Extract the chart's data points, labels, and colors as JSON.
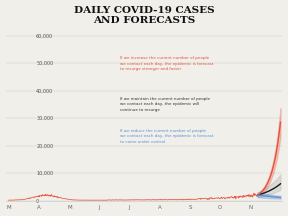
{
  "title_line1": "DAILY COVID-19 CASES",
  "title_line2": "AND FORECASTS",
  "title_fontsize": 7.5,
  "ytick_vals": [
    0,
    10000,
    20000,
    30000,
    40000,
    50000,
    60000
  ],
  "ylabel_ticks": [
    "0",
    "10,000",
    "20,000",
    "30,000",
    "40,000",
    "50,000",
    "60,000"
  ],
  "ylim": [
    0,
    63000
  ],
  "xtick_labels": [
    "M",
    "A",
    "M",
    "J",
    "J",
    "A",
    "S",
    "O",
    "N"
  ],
  "bg_color": "#f0efea",
  "actual_color": "#e8503a",
  "forecast_maintain_color": "#1a1a1a",
  "forecast_maintain_band_color": "#aaaaaa",
  "forecast_increase_color": "#e8503a",
  "forecast_increase_band_color": "#e8503a",
  "forecast_reduce_color": "#5b8fd4",
  "forecast_reduce_band_color": "#5b8fd4",
  "annotation_increase_color": "#e8503a",
  "annotation_maintain_color": "#333333",
  "annotation_reduce_color": "#5b8fd4",
  "annotation_increase": "If we increase the current number of people\nwe contact each day, the epidemic is forecast\nto resurge stronger and faster",
  "annotation_maintain": "If we maintain the current number of people\nwe contact each day, the epidemic will\ncontinue to resurge",
  "annotation_reduce": "If we reduce the current number of people\nwe contact each day, the epidemic is forecast\nto come under control"
}
